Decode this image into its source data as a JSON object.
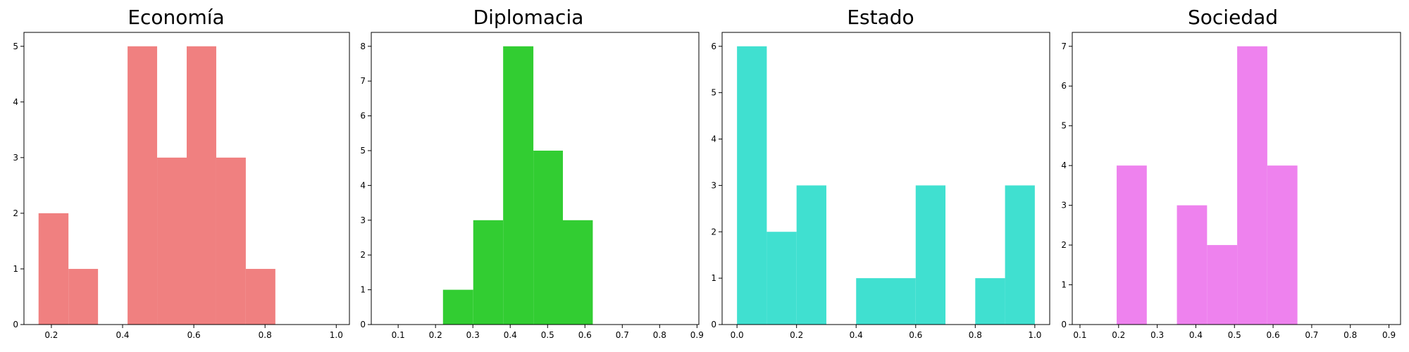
{
  "chart_data": [
    {
      "type": "bar",
      "title": "Economía",
      "color": "#F08080",
      "xlim": [
        0.123,
        1.037
      ],
      "ylim": [
        0,
        5.25
      ],
      "xticks": [
        "0.2",
        "0.4",
        "0.6",
        "0.8",
        "1.0"
      ],
      "yticks": [
        "0",
        "1",
        "2",
        "3",
        "4",
        "5"
      ],
      "bins": [
        {
          "x0": 0.164,
          "x1": 0.248,
          "value": 2
        },
        {
          "x0": 0.248,
          "x1": 0.331,
          "value": 1
        },
        {
          "x0": 0.331,
          "x1": 0.414,
          "value": 0
        },
        {
          "x0": 0.414,
          "x1": 0.497,
          "value": 5
        },
        {
          "x0": 0.497,
          "x1": 0.58,
          "value": 3
        },
        {
          "x0": 0.58,
          "x1": 0.663,
          "value": 5
        },
        {
          "x0": 0.663,
          "x1": 0.746,
          "value": 3
        },
        {
          "x0": 0.746,
          "x1": 0.829,
          "value": 1
        }
      ]
    },
    {
      "type": "bar",
      "title": "Diplomacia",
      "color": "#32CD32",
      "xlim": [
        0.028,
        0.905
      ],
      "ylim": [
        0,
        8.4
      ],
      "xticks": [
        "0.1",
        "0.2",
        "0.3",
        "0.4",
        "0.5",
        "0.6",
        "0.7",
        "0.8",
        "0.9"
      ],
      "yticks": [
        "0",
        "1",
        "2",
        "3",
        "4",
        "5",
        "6",
        "7",
        "8"
      ],
      "bins": [
        {
          "x0": 0.22,
          "x1": 0.301,
          "value": 1
        },
        {
          "x0": 0.301,
          "x1": 0.381,
          "value": 3
        },
        {
          "x0": 0.381,
          "x1": 0.462,
          "value": 8
        },
        {
          "x0": 0.462,
          "x1": 0.541,
          "value": 5
        },
        {
          "x0": 0.541,
          "x1": 0.621,
          "value": 3
        }
      ]
    },
    {
      "type": "bar",
      "title": "Estado",
      "color": "#40E0D0",
      "xlim": [
        -0.05,
        1.05
      ],
      "ylim": [
        0,
        6.3
      ],
      "xticks": [
        "0.0",
        "0.2",
        "0.4",
        "0.6",
        "0.8",
        "1.0"
      ],
      "yticks": [
        "0",
        "1",
        "2",
        "3",
        "4",
        "5",
        "6"
      ],
      "bins": [
        {
          "x0": 0.0,
          "x1": 0.1,
          "value": 6
        },
        {
          "x0": 0.1,
          "x1": 0.2,
          "value": 2
        },
        {
          "x0": 0.2,
          "x1": 0.3,
          "value": 3
        },
        {
          "x0": 0.3,
          "x1": 0.4,
          "value": 0
        },
        {
          "x0": 0.4,
          "x1": 0.5,
          "value": 1
        },
        {
          "x0": 0.5,
          "x1": 0.6,
          "value": 1
        },
        {
          "x0": 0.6,
          "x1": 0.7,
          "value": 3
        },
        {
          "x0": 0.7,
          "x1": 0.8,
          "value": 0
        },
        {
          "x0": 0.8,
          "x1": 0.9,
          "value": 1
        },
        {
          "x0": 0.9,
          "x1": 1.0,
          "value": 3
        }
      ]
    },
    {
      "type": "bar",
      "title": "Sociedad",
      "color": "#EE82EE",
      "xlim": [
        0.08,
        0.93
      ],
      "ylim": [
        0,
        7.35
      ],
      "xticks": [
        "0.1",
        "0.2",
        "0.3",
        "0.4",
        "0.5",
        "0.6",
        "0.7",
        "0.8",
        "0.9"
      ],
      "yticks": [
        "0",
        "1",
        "2",
        "3",
        "4",
        "5",
        "6",
        "7"
      ],
      "bins": [
        {
          "x0": 0.195,
          "x1": 0.273,
          "value": 4
        },
        {
          "x0": 0.273,
          "x1": 0.351,
          "value": 0
        },
        {
          "x0": 0.351,
          "x1": 0.429,
          "value": 3
        },
        {
          "x0": 0.429,
          "x1": 0.507,
          "value": 2
        },
        {
          "x0": 0.507,
          "x1": 0.585,
          "value": 7
        },
        {
          "x0": 0.585,
          "x1": 0.663,
          "value": 4
        }
      ]
    }
  ]
}
